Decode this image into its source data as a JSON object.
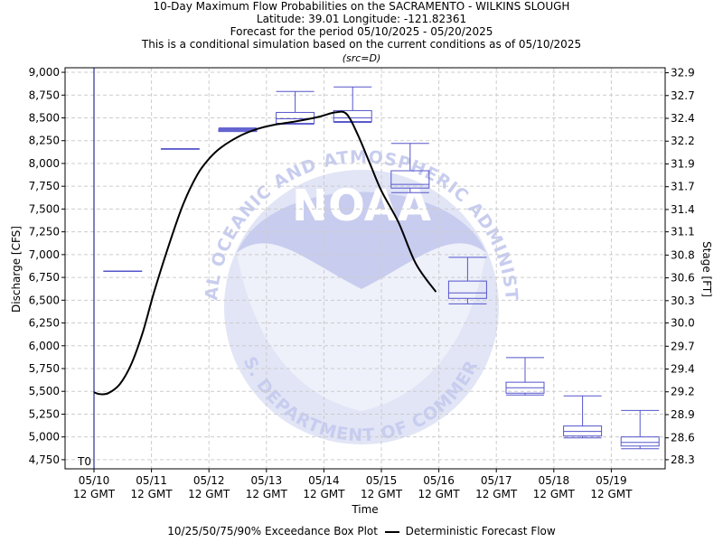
{
  "header": {
    "title": "10-Day Maximum Flow Probabilities on the SACRAMENTO - WILKINS SLOUGH",
    "location": "Latitude: 39.01 Longitude: -121.82361",
    "period": "Forecast for the period 05/10/2025 - 05/20/2025",
    "note": "This is a conditional simulation based on the current conditions as of 05/10/2025",
    "src": "(src=D)"
  },
  "watermark": {
    "logo_text": "NOAA",
    "ring_top": "NATIONAL OCEANIC AND ATMOSPHERIC ADMINISTRATION",
    "ring_bottom": "U.S. DEPARTMENT OF COMMERCE"
  },
  "legend": {
    "boxplot_label": "10/25/50/75/90% Exceedance Box Plot",
    "line_label": "Deterministic Forecast Flow"
  },
  "colors": {
    "box": "#5555cc",
    "deterministic": "#000000",
    "t0": "#000080",
    "grid": "#cccccc",
    "watermark": "#d8dcf2"
  },
  "chart_data": {
    "type": "boxplot_with_line",
    "xlabel": "Time",
    "ylabel": "Discharge [CFS]",
    "y2label": "Stage [FT]",
    "t0_label": "T0",
    "xticks": [
      "05/10\n12 GMT",
      "05/11\n12 GMT",
      "05/12\n12 GMT",
      "05/13\n12 GMT",
      "05/14\n12 GMT",
      "05/15\n12 GMT",
      "05/16\n12 GMT",
      "05/17\n12 GMT",
      "05/18\n12 GMT",
      "05/19\n12 GMT"
    ],
    "xlim_days": [
      -0.5,
      10.0
    ],
    "ylim": [
      4650,
      9050
    ],
    "yticks": [
      "4,750",
      "5,000",
      "5,250",
      "5,500",
      "5,750",
      "6,000",
      "6,250",
      "6,500",
      "6,750",
      "7,000",
      "7,250",
      "7,500",
      "7,750",
      "8,000",
      "8,250",
      "8,500",
      "8,750",
      "9,000"
    ],
    "y2ticks": [
      {
        "label": "28.3",
        "flow": 4750
      },
      {
        "label": "28.6",
        "flow": 4990
      },
      {
        "label": "28.9",
        "flow": 5245
      },
      {
        "label": "29.2",
        "flow": 5495
      },
      {
        "label": "29.4",
        "flow": 5745
      },
      {
        "label": "29.7",
        "flow": 5995
      },
      {
        "label": "30.0",
        "flow": 6250
      },
      {
        "label": "30.3",
        "flow": 6495
      },
      {
        "label": "30.6",
        "flow": 6745
      },
      {
        "label": "30.8",
        "flow": 6995
      },
      {
        "label": "31.1",
        "flow": 7250
      },
      {
        "label": "31.4",
        "flow": 7495
      },
      {
        "label": "31.7",
        "flow": 7745
      },
      {
        "label": "31.9",
        "flow": 7995
      },
      {
        "label": "32.2",
        "flow": 8245
      },
      {
        "label": "32.4",
        "flow": 8495
      },
      {
        "label": "32.7",
        "flow": 8745
      },
      {
        "label": "32.9",
        "flow": 8995
      }
    ],
    "boxes": [
      {
        "day": "05/11",
        "p10": 6820,
        "p25": 6820,
        "p50": 6820,
        "p75": 6820,
        "p90": 6820
      },
      {
        "day": "05/12",
        "p10": 8160,
        "p25": 8160,
        "p50": 8160,
        "p75": 8160,
        "p90": 8160
      },
      {
        "day": "05/13",
        "p10": 8360,
        "p25": 8350,
        "p50": 8370,
        "p75": 8380,
        "p90": 8390
      },
      {
        "day": "05/14",
        "p10": 8430,
        "p25": 8440,
        "p50": 8490,
        "p75": 8560,
        "p90": 8790
      },
      {
        "day": "05/15",
        "p10": 8450,
        "p25": 8460,
        "p50": 8500,
        "p75": 8580,
        "p90": 8840
      },
      {
        "day": "05/16",
        "p10": 7680,
        "p25": 7730,
        "p50": 7770,
        "p75": 7920,
        "p90": 8220
      },
      {
        "day": "05/17",
        "p10": 6460,
        "p25": 6520,
        "p50": 6580,
        "p75": 6710,
        "p90": 6970
      },
      {
        "day": "05/18",
        "p10": 5460,
        "p25": 5480,
        "p50": 5540,
        "p75": 5600,
        "p90": 5870
      },
      {
        "day": "05/19",
        "p10": 4990,
        "p25": 5010,
        "p50": 5060,
        "p75": 5120,
        "p90": 5450
      },
      {
        "day": "05/20",
        "p10": 4870,
        "p25": 4900,
        "p50": 4940,
        "p75": 5000,
        "p90": 5290
      }
    ],
    "deterministic": [
      {
        "t": 0.0,
        "flow": 5490
      },
      {
        "t": 0.1,
        "flow": 5470
      },
      {
        "t": 0.25,
        "flow": 5480
      },
      {
        "t": 0.45,
        "flow": 5580
      },
      {
        "t": 0.65,
        "flow": 5800
      },
      {
        "t": 0.85,
        "flow": 6150
      },
      {
        "t": 1.05,
        "flow": 6600
      },
      {
        "t": 1.3,
        "flow": 7100
      },
      {
        "t": 1.55,
        "flow": 7550
      },
      {
        "t": 1.8,
        "flow": 7880
      },
      {
        "t": 2.0,
        "flow": 8050
      },
      {
        "t": 2.2,
        "flow": 8170
      },
      {
        "t": 2.5,
        "flow": 8290
      },
      {
        "t": 2.8,
        "flow": 8370
      },
      {
        "t": 3.1,
        "flow": 8420
      },
      {
        "t": 3.5,
        "flow": 8460
      },
      {
        "t": 3.9,
        "flow": 8510
      },
      {
        "t": 4.2,
        "flow": 8560
      },
      {
        "t": 4.4,
        "flow": 8540
      },
      {
        "t": 4.6,
        "flow": 8300
      },
      {
        "t": 4.8,
        "flow": 8000
      },
      {
        "t": 5.0,
        "flow": 7700
      },
      {
        "t": 5.3,
        "flow": 7350
      },
      {
        "t": 5.6,
        "flow": 6900
      },
      {
        "t": 5.95,
        "flow": 6590
      }
    ]
  }
}
